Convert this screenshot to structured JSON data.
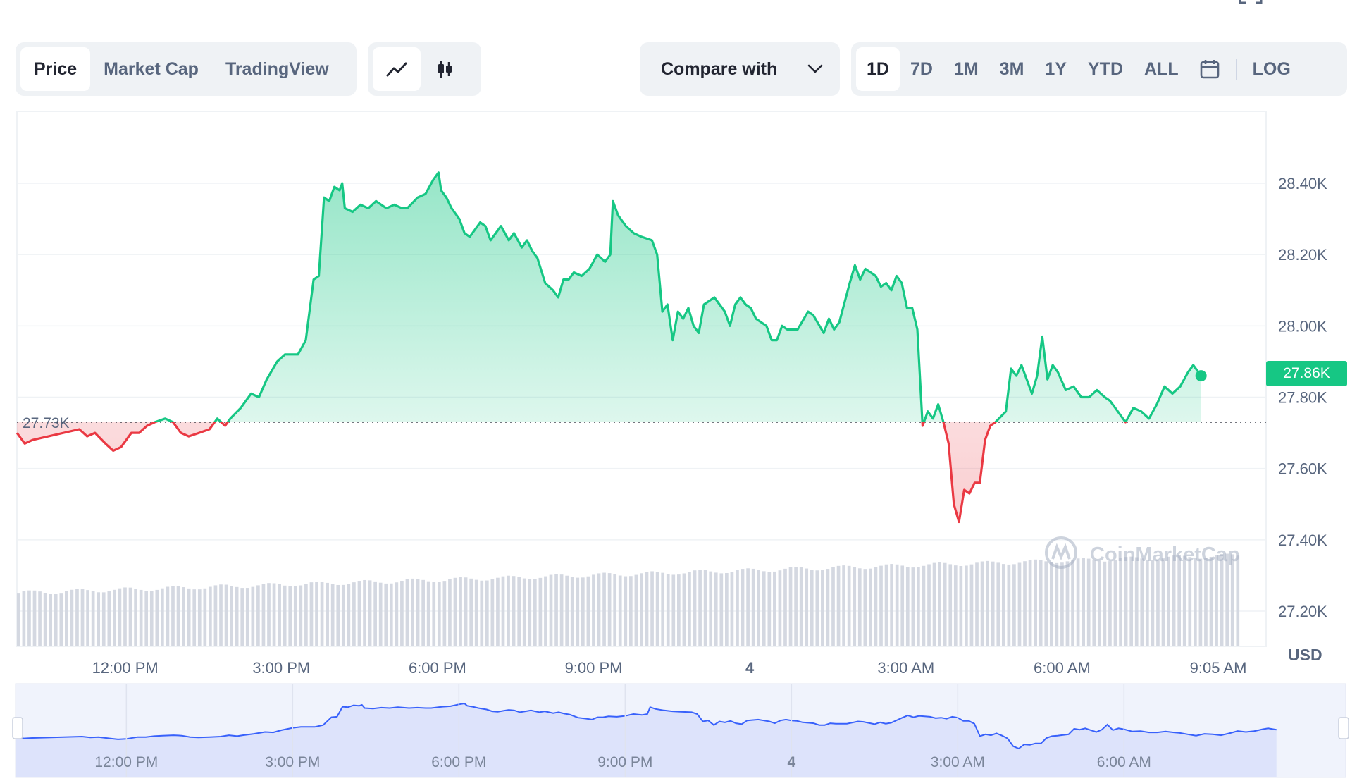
{
  "view_tabs": [
    {
      "label": "Price",
      "active": true
    },
    {
      "label": "Market Cap",
      "active": false
    },
    {
      "label": "TradingView",
      "active": false
    }
  ],
  "chart_type_icons": [
    {
      "icon": "line-chart-icon",
      "active": true
    },
    {
      "icon": "candlestick-icon",
      "active": false
    }
  ],
  "compare": {
    "label": "Compare with",
    "icon": "chevron-down-icon"
  },
  "range_tabs": [
    {
      "label": "1D",
      "active": true
    },
    {
      "label": "7D",
      "active": false
    },
    {
      "label": "1M",
      "active": false
    },
    {
      "label": "3M",
      "active": false
    },
    {
      "label": "1Y",
      "active": false
    },
    {
      "label": "YTD",
      "active": false
    },
    {
      "label": "ALL",
      "active": false
    }
  ],
  "calendar_icon": "calendar-icon",
  "log_label": "LOG",
  "watermark": "CoinMarketCap",
  "current_price_label": "27.86K",
  "reference_price_label": "27.73K",
  "currency_label": "USD",
  "colors": {
    "up": "#16c784",
    "down": "#ea3943",
    "navigator_line": "#3861fb",
    "navigator_fill": "#dde3fb",
    "grid": "#eff2f5"
  },
  "chart_data": {
    "type": "area",
    "title": "",
    "ylabel": "USD",
    "ylim": [
      27200,
      28500
    ],
    "y_ticks": [
      "28.40K",
      "28.20K",
      "28.00K",
      "27.80K",
      "27.60K",
      "27.40K",
      "27.20K"
    ],
    "y_tick_values": [
      28400,
      28200,
      28000,
      27800,
      27600,
      27400,
      27200
    ],
    "reference_value": 27730,
    "current_value": 27860,
    "x_labels": [
      "12:00 PM",
      "3:00 PM",
      "6:00 PM",
      "9:00 PM",
      "4",
      "3:00 AM",
      "6:00 AM",
      "9:05 AM"
    ],
    "x_label_hours": [
      2.08,
      5.08,
      8.08,
      11.08,
      14.08,
      17.08,
      20.08,
      23.08
    ],
    "series": [
      {
        "values": [
          [
            0.0,
            27700
          ],
          [
            0.15,
            27670
          ],
          [
            0.3,
            27680
          ],
          [
            1.2,
            27710
          ],
          [
            1.35,
            27690
          ],
          [
            1.5,
            27700
          ],
          [
            1.7,
            27670
          ],
          [
            1.85,
            27650
          ],
          [
            2.0,
            27660
          ],
          [
            2.2,
            27700
          ],
          [
            2.35,
            27700
          ],
          [
            2.5,
            27720
          ],
          [
            2.65,
            27730
          ],
          [
            2.85,
            27740
          ],
          [
            3.0,
            27730
          ],
          [
            3.15,
            27700
          ],
          [
            3.3,
            27690
          ],
          [
            3.5,
            27700
          ],
          [
            3.7,
            27710
          ],
          [
            3.85,
            27740
          ],
          [
            4.0,
            27720
          ],
          [
            4.1,
            27740
          ],
          [
            4.3,
            27770
          ],
          [
            4.5,
            27810
          ],
          [
            4.65,
            27800
          ],
          [
            4.8,
            27850
          ],
          [
            5.0,
            27900
          ],
          [
            5.15,
            27920
          ],
          [
            5.4,
            27920
          ],
          [
            5.55,
            27960
          ],
          [
            5.7,
            28130
          ],
          [
            5.8,
            28140
          ],
          [
            5.9,
            28360
          ],
          [
            6.0,
            28350
          ],
          [
            6.1,
            28390
          ],
          [
            6.2,
            28380
          ],
          [
            6.25,
            28400
          ],
          [
            6.3,
            28330
          ],
          [
            6.45,
            28320
          ],
          [
            6.6,
            28340
          ],
          [
            6.75,
            28330
          ],
          [
            6.9,
            28350
          ],
          [
            7.0,
            28340
          ],
          [
            7.1,
            28330
          ],
          [
            7.25,
            28340
          ],
          [
            7.4,
            28330
          ],
          [
            7.5,
            28330
          ],
          [
            7.7,
            28360
          ],
          [
            7.85,
            28370
          ],
          [
            8.0,
            28410
          ],
          [
            8.1,
            28430
          ],
          [
            8.15,
            28380
          ],
          [
            8.25,
            28360
          ],
          [
            8.35,
            28330
          ],
          [
            8.5,
            28300
          ],
          [
            8.6,
            28260
          ],
          [
            8.7,
            28250
          ],
          [
            8.8,
            28270
          ],
          [
            8.9,
            28290
          ],
          [
            9.0,
            28280
          ],
          [
            9.1,
            28240
          ],
          [
            9.2,
            28260
          ],
          [
            9.3,
            28280
          ],
          [
            9.45,
            28240
          ],
          [
            9.55,
            28260
          ],
          [
            9.7,
            28220
          ],
          [
            9.8,
            28240
          ],
          [
            9.9,
            28210
          ],
          [
            10.0,
            28190
          ],
          [
            10.15,
            28120
          ],
          [
            10.3,
            28100
          ],
          [
            10.4,
            28080
          ],
          [
            10.5,
            28130
          ],
          [
            10.6,
            28130
          ],
          [
            10.7,
            28150
          ],
          [
            10.85,
            28140
          ],
          [
            11.0,
            28160
          ],
          [
            11.15,
            28200
          ],
          [
            11.3,
            28180
          ],
          [
            11.4,
            28200
          ],
          [
            11.45,
            28350
          ],
          [
            11.55,
            28310
          ],
          [
            11.7,
            28280
          ],
          [
            11.85,
            28260
          ],
          [
            12.0,
            28250
          ],
          [
            12.2,
            28240
          ],
          [
            12.3,
            28200
          ],
          [
            12.4,
            28040
          ],
          [
            12.5,
            28060
          ],
          [
            12.6,
            27960
          ],
          [
            12.7,
            28040
          ],
          [
            12.8,
            28020
          ],
          [
            12.9,
            28050
          ],
          [
            13.0,
            28000
          ],
          [
            13.1,
            27980
          ],
          [
            13.2,
            28060
          ],
          [
            13.4,
            28080
          ],
          [
            13.5,
            28060
          ],
          [
            13.6,
            28040
          ],
          [
            13.7,
            28000
          ],
          [
            13.8,
            28060
          ],
          [
            13.9,
            28080
          ],
          [
            14.0,
            28060
          ],
          [
            14.1,
            28050
          ],
          [
            14.2,
            28020
          ],
          [
            14.3,
            28010
          ],
          [
            14.4,
            28000
          ],
          [
            14.5,
            27960
          ],
          [
            14.6,
            27960
          ],
          [
            14.7,
            28000
          ],
          [
            14.8,
            27990
          ],
          [
            15.0,
            27990
          ],
          [
            15.2,
            28040
          ],
          [
            15.3,
            28030
          ],
          [
            15.5,
            27980
          ],
          [
            15.6,
            28020
          ],
          [
            15.7,
            27990
          ],
          [
            15.8,
            28010
          ],
          [
            16.0,
            28120
          ],
          [
            16.1,
            28170
          ],
          [
            16.2,
            28130
          ],
          [
            16.3,
            28160
          ],
          [
            16.5,
            28140
          ],
          [
            16.6,
            28110
          ],
          [
            16.7,
            28120
          ],
          [
            16.8,
            28100
          ],
          [
            16.9,
            28140
          ],
          [
            17.0,
            28120
          ],
          [
            17.1,
            28050
          ],
          [
            17.2,
            28050
          ],
          [
            17.3,
            27990
          ],
          [
            17.4,
            27720
          ],
          [
            17.5,
            27760
          ],
          [
            17.6,
            27740
          ],
          [
            17.7,
            27780
          ],
          [
            17.8,
            27730
          ],
          [
            17.9,
            27670
          ],
          [
            18.0,
            27500
          ],
          [
            18.1,
            27450
          ],
          [
            18.2,
            27540
          ],
          [
            18.3,
            27530
          ],
          [
            18.4,
            27560
          ],
          [
            18.5,
            27560
          ],
          [
            18.6,
            27680
          ],
          [
            18.7,
            27720
          ],
          [
            18.8,
            27730
          ],
          [
            19.0,
            27760
          ],
          [
            19.1,
            27880
          ],
          [
            19.2,
            27860
          ],
          [
            19.3,
            27890
          ],
          [
            19.4,
            27850
          ],
          [
            19.5,
            27810
          ],
          [
            19.6,
            27860
          ],
          [
            19.7,
            27970
          ],
          [
            19.8,
            27850
          ],
          [
            19.9,
            27890
          ],
          [
            20.0,
            27870
          ],
          [
            20.15,
            27820
          ],
          [
            20.3,
            27830
          ],
          [
            20.45,
            27800
          ],
          [
            20.6,
            27800
          ],
          [
            20.75,
            27820
          ],
          [
            20.9,
            27800
          ],
          [
            21.0,
            27790
          ],
          [
            21.15,
            27760
          ],
          [
            21.3,
            27730
          ],
          [
            21.45,
            27770
          ],
          [
            21.6,
            27760
          ],
          [
            21.75,
            27740
          ],
          [
            21.9,
            27780
          ],
          [
            22.05,
            27830
          ],
          [
            22.2,
            27810
          ],
          [
            22.35,
            27830
          ],
          [
            22.5,
            27870
          ],
          [
            22.6,
            27890
          ],
          [
            22.7,
            27870
          ],
          [
            22.75,
            27860
          ]
        ]
      }
    ],
    "volume_bar_count": 230,
    "volume_start": 0.1,
    "volume_end": 0.17,
    "navigator": {
      "x_labels": [
        "12:00 PM",
        "3:00 PM",
        "6:00 PM",
        "9:00 PM",
        "4",
        "3:00 AM",
        "6:00 AM"
      ],
      "x_label_hours": [
        2.0,
        5.0,
        8.0,
        11.0,
        14.0,
        17.0,
        20.0
      ]
    }
  }
}
